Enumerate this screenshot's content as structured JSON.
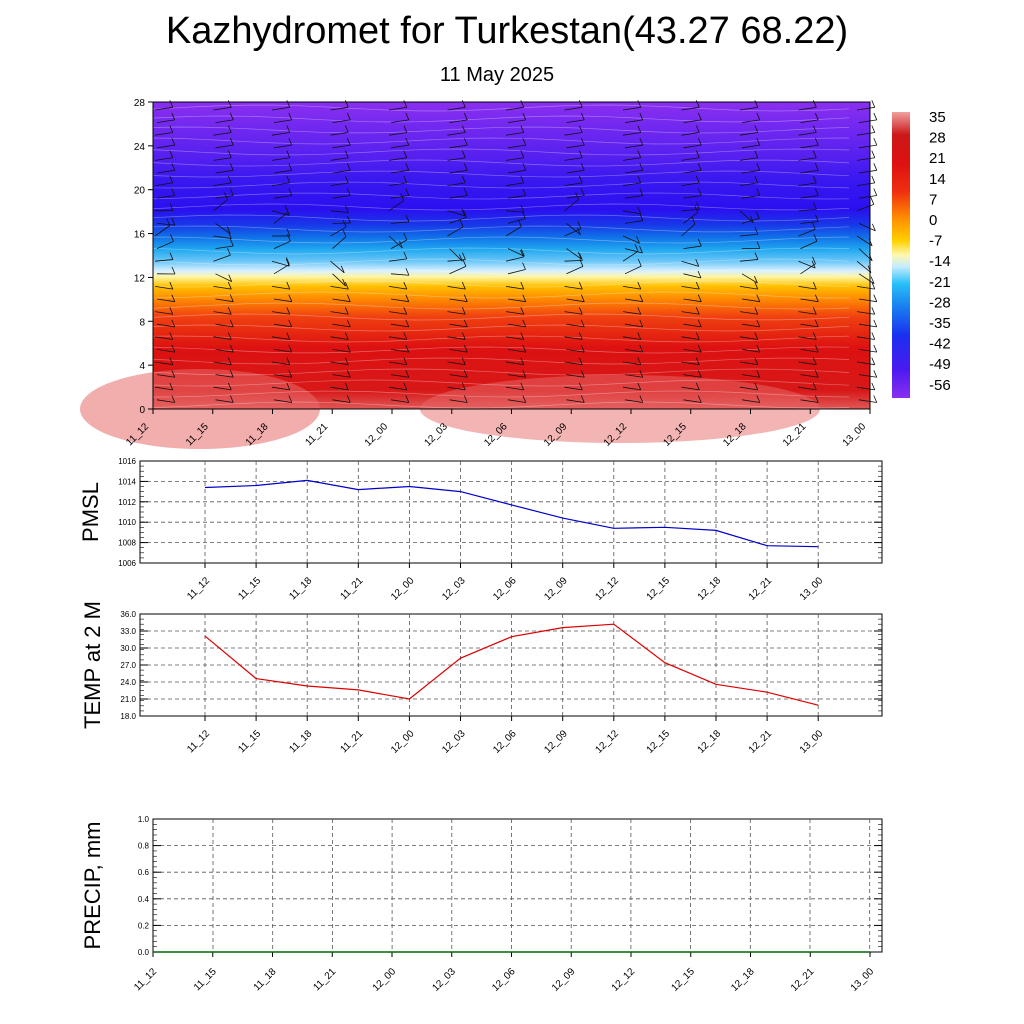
{
  "title": "Kazhydromet for Turkestan(43.27 68.22)",
  "subtitle": "11 May 2025",
  "time_labels": [
    "11_12",
    "11_15",
    "11_18",
    "11_21",
    "12_00",
    "12_03",
    "12_06",
    "12_09",
    "12_12",
    "12_15",
    "12_18",
    "12_21",
    "13_00"
  ],
  "colors": {
    "pmsl_line": "#0000cc",
    "temp_line": "#dd0000",
    "precip_line": "#006600",
    "grid": "#555555"
  },
  "chart_data": [
    {
      "type": "heatmap",
      "name": "temperature-height",
      "x_categories": [
        "11_12",
        "11_15",
        "11_18",
        "11_21",
        "12_00",
        "12_03",
        "12_06",
        "12_09",
        "12_12",
        "12_15",
        "12_18",
        "12_21",
        "13_00"
      ],
      "y_ticks": [
        0,
        4,
        8,
        12,
        16,
        20,
        24,
        28
      ],
      "ylim": [
        0,
        28
      ],
      "colorbar_labels": [
        35,
        28,
        21,
        14,
        7,
        0,
        -7,
        -14,
        -21,
        -28,
        -35,
        -42,
        -49,
        -56
      ],
      "colorbar_range": [
        -63,
        42
      ],
      "wind_barbs": true
    },
    {
      "type": "line",
      "name": "pmsl",
      "ylabel": "PMSL",
      "categories": [
        "11_12",
        "11_15",
        "11_18",
        "11_21",
        "12_00",
        "12_03",
        "12_06",
        "12_09",
        "12_12",
        "12_15",
        "12_18",
        "12_21",
        "13_00"
      ],
      "values": [
        1013.4,
        1013.6,
        1014.1,
        1013.2,
        1013.5,
        1013.0,
        1011.7,
        1010.4,
        1009.4,
        1009.5,
        1009.2,
        1007.7,
        1007.6
      ],
      "ylim": [
        1006,
        1016
      ],
      "y_ticks": [
        1006,
        1008,
        1010,
        1012,
        1014,
        1016
      ],
      "grid": true
    },
    {
      "type": "line",
      "name": "temp-2m",
      "ylabel": "TEMP at 2 M",
      "categories": [
        "11_12",
        "11_15",
        "11_18",
        "11_21",
        "12_00",
        "12_03",
        "12_06",
        "12_09",
        "12_12",
        "12_15",
        "12_18",
        "12_21",
        "13_00"
      ],
      "values": [
        32.1,
        24.6,
        23.3,
        22.6,
        21.0,
        28.2,
        32.0,
        33.6,
        34.2,
        27.4,
        23.6,
        22.2,
        19.9
      ],
      "ylim": [
        18.0,
        36.0
      ],
      "y_ticks": [
        "18.0",
        "21.0",
        "24.0",
        "27.0",
        "30.0",
        "33.0",
        "36.0"
      ],
      "grid": true
    },
    {
      "type": "line",
      "name": "precip",
      "ylabel": "PRECIP, mm",
      "categories": [
        "11_12",
        "11_15",
        "11_18",
        "11_21",
        "12_00",
        "12_03",
        "12_06",
        "12_09",
        "12_12",
        "12_15",
        "12_18",
        "12_21",
        "13_00"
      ],
      "values": [
        0,
        0,
        0,
        0,
        0,
        0,
        0,
        0,
        0,
        0,
        0,
        0,
        0
      ],
      "ylim": [
        0.0,
        1.0
      ],
      "y_ticks": [
        "0.0",
        "0.2",
        "0.4",
        "0.6",
        "0.8",
        "1.0"
      ],
      "grid": true
    }
  ]
}
